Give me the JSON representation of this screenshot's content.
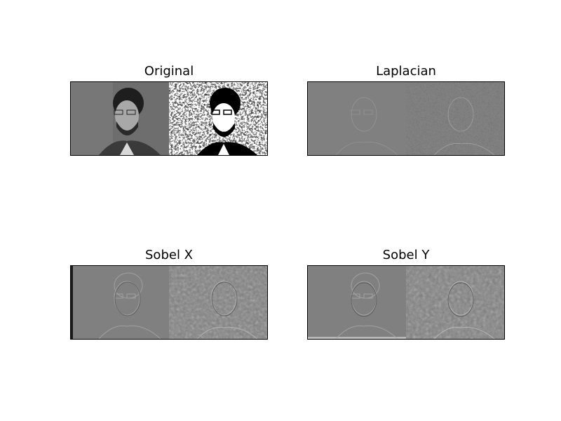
{
  "figure": {
    "panels": [
      {
        "id": "original",
        "title": "Original"
      },
      {
        "id": "laplacian",
        "title": "Laplacian"
      },
      {
        "id": "sobelx",
        "title": "Sobel X"
      },
      {
        "id": "sobely",
        "title": "Sobel Y"
      }
    ]
  },
  "colors": {
    "background": "#ffffff",
    "frame": "#000000",
    "neutral_gray": "#808080"
  }
}
